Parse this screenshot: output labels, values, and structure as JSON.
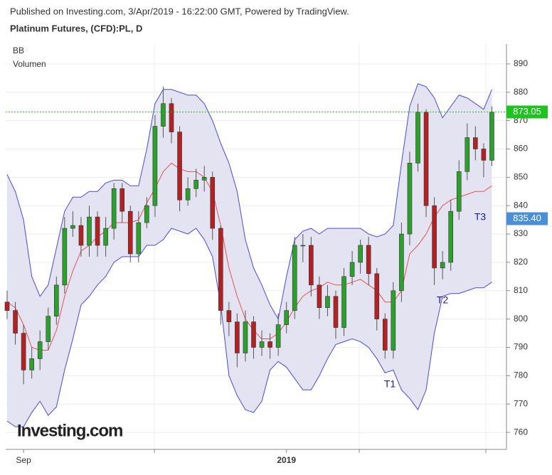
{
  "header": {
    "published": "Published on Investing.com, 3/Apr/2019 - 16:22:00 GMT, Powered by TradingView.",
    "title": "Platinum Futures, (CFD):PL, D"
  },
  "chart_data": {
    "type": "candlestick",
    "indicators": [
      "BB",
      "Volumen"
    ],
    "logo": "Investing.com",
    "categories": [
      null,
      null,
      "Sep",
      null,
      null,
      null,
      null,
      null,
      null,
      null,
      null,
      null,
      null,
      null,
      null,
      null,
      null,
      null,
      null,
      null,
      null,
      null,
      null,
      null,
      null,
      null,
      null,
      null,
      null,
      null,
      null,
      null,
      null,
      null,
      "2019",
      null,
      null,
      null,
      null,
      null,
      null,
      null,
      null,
      null,
      null,
      null,
      null,
      null,
      null,
      null,
      null,
      null,
      null,
      null,
      null,
      null,
      null,
      null,
      null,
      null
    ],
    "open": [
      806,
      803,
      795,
      782,
      786,
      792,
      801,
      812,
      832,
      833,
      826,
      836,
      826,
      832,
      846,
      838,
      823,
      834,
      840,
      868,
      876,
      866,
      842,
      846,
      849,
      850,
      832,
      803,
      799,
      788,
      799,
      790,
      792,
      790,
      798,
      803,
      826,
      826,
      812,
      804,
      808,
      797,
      815,
      820,
      826,
      816,
      800,
      789,
      810,
      830,
      855,
      873,
      840,
      818,
      820,
      838,
      852,
      864,
      860,
      856
    ],
    "high": [
      810,
      806,
      798,
      790,
      796,
      804,
      815,
      836,
      838,
      836,
      840,
      838,
      836,
      848,
      848,
      840,
      838,
      843,
      872,
      882,
      878,
      868,
      850,
      853,
      854,
      852,
      833,
      806,
      802,
      803,
      801,
      796,
      795,
      802,
      806,
      829,
      830,
      829,
      815,
      812,
      810,
      818,
      824,
      828,
      829,
      818,
      802,
      813,
      834,
      859,
      876,
      874,
      843,
      824,
      842,
      856,
      869,
      868,
      862,
      875
    ],
    "low": [
      800,
      791,
      777,
      779,
      782,
      789,
      798,
      809,
      829,
      822,
      822,
      822,
      822,
      828,
      834,
      820,
      820,
      832,
      836,
      864,
      862,
      838,
      840,
      843,
      845,
      828,
      798,
      794,
      783,
      785,
      786,
      787,
      786,
      787,
      795,
      800,
      820,
      808,
      800,
      801,
      793,
      794,
      812,
      816,
      812,
      796,
      786,
      786,
      806,
      826,
      852,
      836,
      812,
      814,
      817,
      835,
      849,
      856,
      850,
      854
    ],
    "close": [
      803,
      795,
      782,
      786,
      792,
      801,
      812,
      832,
      833,
      826,
      836,
      826,
      832,
      846,
      838,
      823,
      834,
      840,
      868,
      876,
      866,
      842,
      846,
      849,
      850,
      832,
      803,
      799,
      788,
      799,
      790,
      792,
      790,
      798,
      803,
      826,
      826,
      812,
      804,
      808,
      797,
      815,
      820,
      826,
      816,
      800,
      789,
      810,
      830,
      855,
      873,
      840,
      818,
      820,
      838,
      852,
      864,
      860,
      856,
      873
    ],
    "upper": [
      851,
      845,
      835,
      815,
      808,
      812,
      825,
      838,
      843,
      843,
      845,
      845,
      848,
      849,
      849,
      847,
      847,
      860,
      876,
      881,
      881,
      880,
      879,
      879,
      876,
      870,
      862,
      855,
      845,
      828,
      818,
      812,
      805,
      800,
      815,
      828,
      831,
      832,
      830,
      832,
      832,
      832,
      832,
      832,
      830,
      829,
      830,
      833,
      855,
      875,
      883,
      882,
      878,
      871,
      875,
      879,
      878,
      876,
      874,
      881
    ],
    "middle": [
      806,
      804,
      798,
      790,
      789,
      789,
      796,
      808,
      817,
      824,
      826,
      829,
      831,
      834,
      834,
      834,
      835,
      841,
      846,
      852,
      855,
      853,
      852,
      852,
      850,
      845,
      833,
      818,
      808,
      800,
      796,
      793,
      793,
      795,
      799,
      804,
      808,
      810,
      811,
      813,
      812,
      812,
      813,
      814,
      812,
      810,
      806,
      806,
      810,
      823,
      826,
      830,
      836,
      840,
      842,
      843,
      844,
      845,
      845,
      847
    ],
    "lower": [
      764,
      762,
      762,
      767,
      771,
      766,
      769,
      782,
      793,
      805,
      808,
      812,
      815,
      820,
      822,
      822,
      822,
      826,
      826,
      828,
      832,
      831,
      830,
      832,
      828,
      822,
      805,
      780,
      773,
      768,
      767,
      771,
      782,
      785,
      783,
      779,
      775,
      775,
      780,
      786,
      791,
      792,
      793,
      792,
      790,
      786,
      781,
      782,
      775,
      772,
      768,
      775,
      795,
      808,
      809,
      809,
      810,
      811,
      811,
      813
    ],
    "up_color": "#2ca02c",
    "down_color": "#b22222",
    "band_color": "#4a4ad6",
    "middle_color": "#e05555",
    "band_fill": "#e3e3f1",
    "ylim": [
      754,
      897
    ],
    "yticks": [
      760,
      770,
      780,
      790,
      800,
      810,
      820,
      830,
      840,
      850,
      860,
      870,
      880,
      890
    ],
    "grid": true,
    "price_labels": [
      {
        "value": 873.05,
        "color": "#1fc31f"
      },
      {
        "value": 835.4,
        "label": "835.40",
        "color": "#4a8fd6"
      }
    ],
    "annotations": [
      "T1",
      "T2",
      "T3"
    ]
  }
}
